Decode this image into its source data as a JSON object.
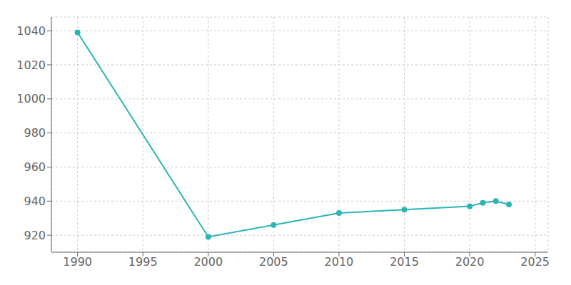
{
  "chart_data": {
    "type": "line",
    "x": [
      1990,
      2000,
      2005,
      2010,
      2015,
      2020,
      2021,
      2022,
      2023
    ],
    "values": [
      1039,
      919,
      926,
      933,
      935,
      937,
      939,
      940,
      938
    ],
    "color": "#2ab5b5",
    "marker": "circle",
    "xlim": [
      1988,
      2026
    ],
    "ylim": [
      910,
      1048
    ],
    "xticks": [
      1990,
      1995,
      2000,
      2005,
      2010,
      2015,
      2020,
      2025
    ],
    "yticks": [
      920,
      940,
      960,
      980,
      1000,
      1020,
      1040
    ],
    "grid": true
  }
}
